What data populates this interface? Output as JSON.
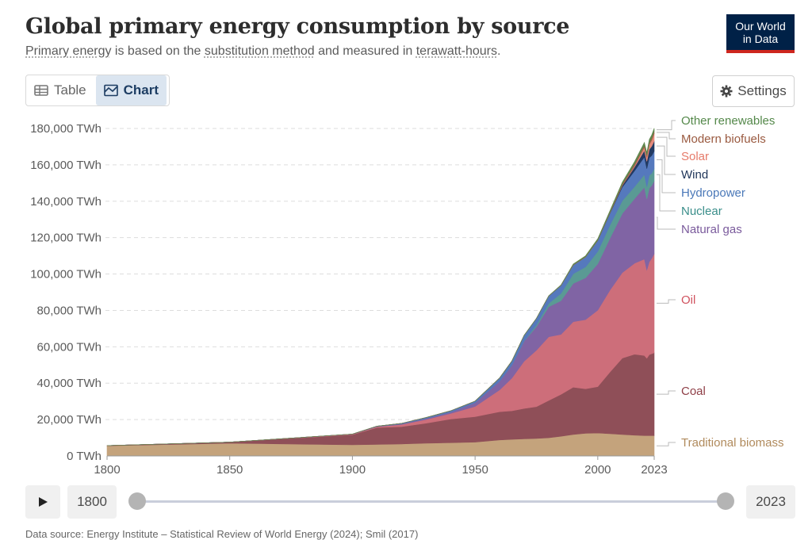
{
  "header": {
    "title": "Global primary energy consumption by source",
    "subtitle_parts": [
      "Primary energy",
      " is based on the ",
      "substitution method",
      " and measured in ",
      "terawatt-hours",
      "."
    ],
    "logo_line1": "Our World",
    "logo_line2": "in Data"
  },
  "controls": {
    "table_label": "Table",
    "chart_label": "Chart",
    "settings_label": "Settings"
  },
  "timeline": {
    "start_year": "1800",
    "end_year": "2023"
  },
  "colors": {
    "traditional_biomass": "#c4a37c",
    "coal": "#8f4f58",
    "oil": "#cd6e7a",
    "natural_gas": "#8064a4",
    "nuclear": "#5a9a94",
    "hydropower": "#5579bd",
    "wind": "#223a63",
    "solar": "#e48b7c",
    "modern_biofuels": "#a2614a",
    "other_renewables": "#5e874d"
  },
  "chart_data": {
    "type": "area",
    "stacked": true,
    "x": [
      1800,
      1850,
      1900,
      1910,
      1920,
      1930,
      1940,
      1950,
      1960,
      1965,
      1970,
      1975,
      1980,
      1985,
      1990,
      1995,
      2000,
      2005,
      2010,
      2015,
      2019,
      2020,
      2021,
      2022,
      2023
    ],
    "series": [
      {
        "name": "Traditional biomass",
        "color": "#c4a37c",
        "label_color": "#b08a5c",
        "values": [
          5600,
          7000,
          6100,
          6300,
          6600,
          7000,
          7300,
          7600,
          8800,
          9100,
          9400,
          9600,
          10000,
          10800,
          11800,
          12400,
          12600,
          12200,
          11800,
          11400,
          11200,
          11200,
          11200,
          11200,
          11200
        ]
      },
      {
        "name": "Coal",
        "color": "#8f4f58",
        "label_color": "#8f3f47",
        "values": [
          100,
          600,
          5600,
          9300,
          9500,
          11000,
          13000,
          14000,
          15500,
          15700,
          16700,
          17500,
          20500,
          23000,
          26000,
          24500,
          25500,
          34000,
          42000,
          44500,
          44000,
          42500,
          44500,
          45000,
          45500
        ]
      },
      {
        "name": "Oil",
        "color": "#cd6e7a",
        "label_color": "#d0525e",
        "values": [
          0,
          0,
          200,
          500,
          1200,
          2000,
          3000,
          5600,
          12000,
          18000,
          26000,
          31000,
          35000,
          33000,
          36000,
          38000,
          42000,
          45000,
          47000,
          50000,
          53000,
          48500,
          51000,
          52500,
          54500
        ]
      },
      {
        "name": "Natural gas",
        "color": "#8064a4",
        "label_color": "#7a5a9c",
        "values": [
          0,
          0,
          100,
          150,
          300,
          600,
          800,
          2000,
          4800,
          7000,
          11000,
          13000,
          16500,
          18500,
          21000,
          23000,
          25500,
          28500,
          32500,
          35500,
          39500,
          39000,
          40500,
          40000,
          40000
        ]
      },
      {
        "name": "Nuclear",
        "color": "#5a9a94",
        "label_color": "#3a8e8a",
        "values": [
          0,
          0,
          0,
          0,
          0,
          0,
          0,
          0,
          0,
          70,
          200,
          1000,
          1900,
          4000,
          5300,
          6000,
          6800,
          7200,
          7000,
          6600,
          7000,
          6800,
          7000,
          6700,
          6800
        ]
      },
      {
        "name": "Hydropower",
        "color": "#5579bd",
        "label_color": "#4a78b8",
        "values": [
          0,
          0,
          50,
          150,
          300,
          500,
          700,
          900,
          1800,
          2300,
          3000,
          3500,
          4000,
          4400,
          4800,
          5400,
          6000,
          6500,
          7500,
          8700,
          9600,
          9900,
          9700,
          9800,
          9600
        ]
      },
      {
        "name": "Wind",
        "color": "#223a63",
        "label_color": "#1f3559",
        "values": [
          0,
          0,
          0,
          0,
          0,
          0,
          0,
          0,
          0,
          0,
          0,
          0,
          0,
          0,
          10,
          20,
          80,
          250,
          800,
          2100,
          3600,
          4000,
          4600,
          5100,
          5500
        ]
      },
      {
        "name": "Solar",
        "color": "#e48b7c",
        "label_color": "#e67b6a",
        "values": [
          0,
          0,
          0,
          0,
          0,
          0,
          0,
          0,
          0,
          0,
          0,
          0,
          0,
          0,
          0,
          0,
          5,
          10,
          80,
          650,
          1800,
          2200,
          2700,
          3300,
          4100
        ]
      },
      {
        "name": "Modern biofuels",
        "color": "#a2614a",
        "label_color": "#9a5a40",
        "values": [
          0,
          0,
          0,
          0,
          0,
          0,
          0,
          0,
          0,
          0,
          0,
          0,
          30,
          80,
          150,
          180,
          200,
          350,
          800,
          1000,
          1150,
          1100,
          1150,
          1200,
          1250
        ]
      },
      {
        "name": "Other renewables",
        "color": "#5e874d",
        "label_color": "#54884a",
        "values": [
          0,
          0,
          0,
          0,
          0,
          0,
          0,
          0,
          0,
          20,
          40,
          80,
          100,
          200,
          400,
          500,
          700,
          900,
          1000,
          1300,
          1500,
          1550,
          1600,
          1650,
          1700
        ]
      }
    ],
    "ylabel": "",
    "xlabel": "",
    "ylim": [
      0,
      180000
    ],
    "xlim": [
      1800,
      2023
    ],
    "y_ticks": [
      0,
      20000,
      40000,
      60000,
      80000,
      100000,
      120000,
      140000,
      160000,
      180000
    ],
    "y_tick_labels": [
      "0 TWh",
      "20,000 TWh",
      "40,000 TWh",
      "60,000 TWh",
      "80,000 TWh",
      "100,000 TWh",
      "120,000 TWh",
      "140,000 TWh",
      "160,000 TWh",
      "180,000 TWh"
    ],
    "x_ticks": [
      1800,
      1850,
      1900,
      1950,
      2000,
      2023
    ],
    "x_tick_labels": [
      "1800",
      "1850",
      "1900",
      "1950",
      "2000",
      "2023"
    ],
    "grid": "horizontal-dashed",
    "legend": "right-labels"
  },
  "footer": {
    "text": "Data source: Energy Institute – Statistical Review of World Energy (2024); Smil (2017)"
  }
}
